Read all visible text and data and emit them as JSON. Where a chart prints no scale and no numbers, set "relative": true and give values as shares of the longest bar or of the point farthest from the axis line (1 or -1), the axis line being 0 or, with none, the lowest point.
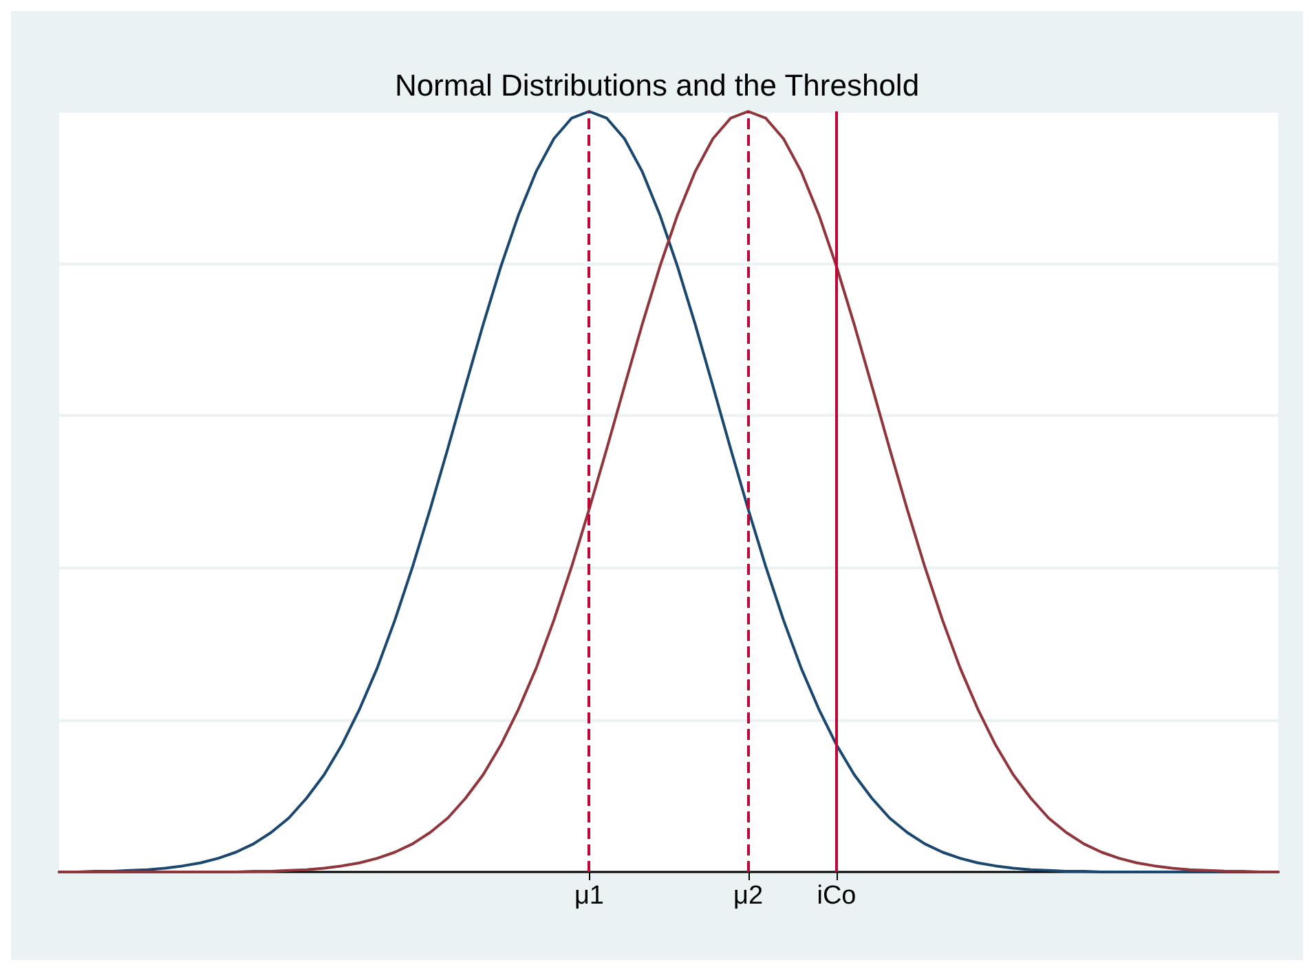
{
  "chart_data": {
    "type": "line",
    "title": "Normal Distributions and the Threshold",
    "relative": true,
    "categories": [
      null,
      null,
      null,
      null,
      null,
      null,
      null,
      null,
      null,
      null,
      null,
      null,
      null,
      null,
      null,
      null,
      null,
      null,
      null,
      null,
      null,
      null,
      null,
      null,
      null,
      null,
      null,
      null,
      null,
      null,
      "μ1",
      null,
      null,
      null,
      null,
      null,
      null,
      null,
      null,
      "μ2",
      null,
      null,
      null,
      null,
      "iCo",
      null,
      null,
      null,
      null,
      null,
      null,
      null,
      null,
      null,
      null,
      null,
      null,
      null,
      null,
      null,
      null,
      null,
      null,
      null,
      null,
      null,
      null,
      null,
      null,
      null
    ],
    "series": [
      {
        "color": "#1a476f",
        "values": [
          0,
          0,
          0.001,
          0.001,
          0.002,
          0.003,
          0.005,
          0.008,
          0.012,
          0.018,
          0.026,
          0.037,
          0.052,
          0.071,
          0.097,
          0.128,
          0.167,
          0.214,
          0.268,
          0.331,
          0.401,
          0.477,
          0.557,
          0.639,
          0.72,
          0.796,
          0.864,
          0.921,
          0.964,
          0.991,
          1,
          0.991,
          0.964,
          0.921,
          0.864,
          0.796,
          0.72,
          0.639,
          0.557,
          0.477,
          0.401,
          0.331,
          0.268,
          0.214,
          0.167,
          0.128,
          0.097,
          0.071,
          0.052,
          0.037,
          0.026,
          0.018,
          0.012,
          0.008,
          0.005,
          0.003,
          0.002,
          0.001,
          0.001,
          0,
          0,
          0,
          0,
          0,
          0,
          0,
          0,
          0,
          0,
          0
        ]
      },
      {
        "color": "#90353b",
        "values": [
          0,
          0,
          0,
          0,
          0,
          0,
          0,
          0,
          0,
          0,
          0,
          0.001,
          0.001,
          0.002,
          0.003,
          0.005,
          0.008,
          0.012,
          0.018,
          0.026,
          0.037,
          0.052,
          0.071,
          0.097,
          0.128,
          0.167,
          0.214,
          0.268,
          0.331,
          0.401,
          0.477,
          0.557,
          0.639,
          0.72,
          0.796,
          0.864,
          0.921,
          0.964,
          0.991,
          1,
          0.991,
          0.964,
          0.921,
          0.864,
          0.796,
          0.72,
          0.639,
          0.557,
          0.477,
          0.401,
          0.331,
          0.268,
          0.214,
          0.167,
          0.128,
          0.097,
          0.071,
          0.052,
          0.037,
          0.026,
          0.018,
          0.012,
          0.008,
          0.005,
          0.003,
          0.002,
          0.001,
          0.001,
          0,
          0
        ]
      }
    ],
    "ref_lines": [
      {
        "axis": "x",
        "value": "μ1",
        "color": "#c10534",
        "line_style": "dashed"
      },
      {
        "axis": "x",
        "value": "μ2",
        "color": "#c10534",
        "line_style": "dashed"
      },
      {
        "axis": "x",
        "value": "iCo",
        "color": "#c10534",
        "line_style": "solid"
      }
    ],
    "grid": "y",
    "marker": "none",
    "line_style": "solid"
  }
}
